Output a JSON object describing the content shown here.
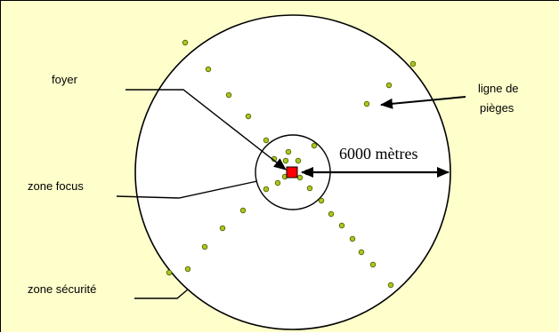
{
  "labels": {
    "foyer": "foyer",
    "zone_focus": "zone focus",
    "zone_securite": "zone sécurité",
    "ligne_de": "ligne de",
    "pieges": "pièges",
    "distance": "6000 mètres"
  },
  "colors": {
    "background": "#ffffcc",
    "zone_fill": "#ffffff",
    "trap_fill": "#a8c81c",
    "trap_stroke": "#4a5a00",
    "foyer_fill": "#ff0000"
  },
  "trap_count": 31
}
